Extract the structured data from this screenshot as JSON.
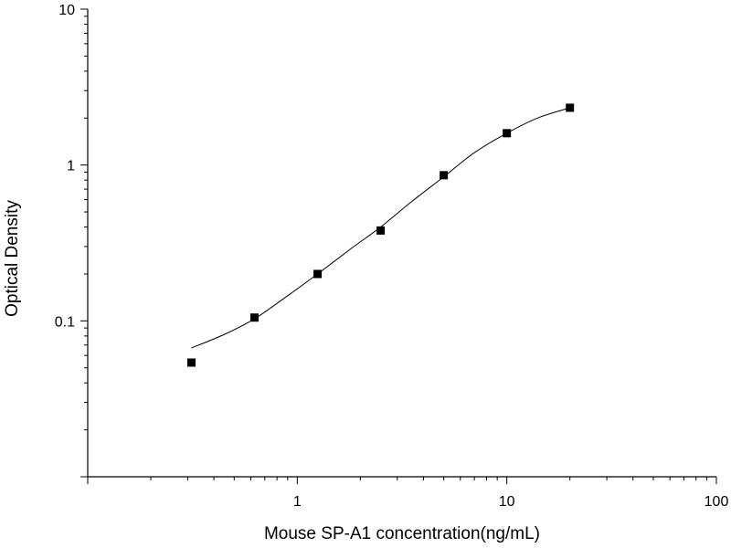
{
  "chart_data": {
    "type": "scatter",
    "title": "",
    "xlabel": "Mouse SP-A1 concentration(ng/mL)",
    "ylabel": "Optical Density",
    "x_scale": "log",
    "y_scale": "log",
    "xlim": [
      0.1,
      100
    ],
    "ylim": [
      0.01,
      10
    ],
    "x_tick_labels": [
      {
        "value": 1,
        "label": "1"
      },
      {
        "value": 10,
        "label": "10"
      },
      {
        "value": 100,
        "label": "100"
      }
    ],
    "y_tick_labels": [
      {
        "value": 0.1,
        "label": "0.1"
      },
      {
        "value": 1,
        "label": "1"
      },
      {
        "value": 10,
        "label": "10"
      }
    ],
    "grid": false,
    "legend": "none",
    "series": [
      {
        "marker": "square",
        "color": "#000000",
        "points": [
          {
            "x": 0.3125,
            "y": 0.054
          },
          {
            "x": 0.625,
            "y": 0.105
          },
          {
            "x": 1.25,
            "y": 0.2
          },
          {
            "x": 2.5,
            "y": 0.38
          },
          {
            "x": 5,
            "y": 0.86
          },
          {
            "x": 10,
            "y": 1.6
          },
          {
            "x": 20,
            "y": 2.33
          }
        ]
      }
    ],
    "fit_curve": {
      "color": "#000000",
      "points": [
        {
          "x": 0.3125,
          "y": 0.067
        },
        {
          "x": 0.45,
          "y": 0.082
        },
        {
          "x": 0.625,
          "y": 0.103
        },
        {
          "x": 0.9,
          "y": 0.145
        },
        {
          "x": 1.25,
          "y": 0.2
        },
        {
          "x": 1.8,
          "y": 0.29
        },
        {
          "x": 2.5,
          "y": 0.4
        },
        {
          "x": 3.5,
          "y": 0.58
        },
        {
          "x": 5,
          "y": 0.84
        },
        {
          "x": 7,
          "y": 1.2
        },
        {
          "x": 10,
          "y": 1.6
        },
        {
          "x": 14,
          "y": 2.0
        },
        {
          "x": 20,
          "y": 2.33
        }
      ]
    }
  }
}
